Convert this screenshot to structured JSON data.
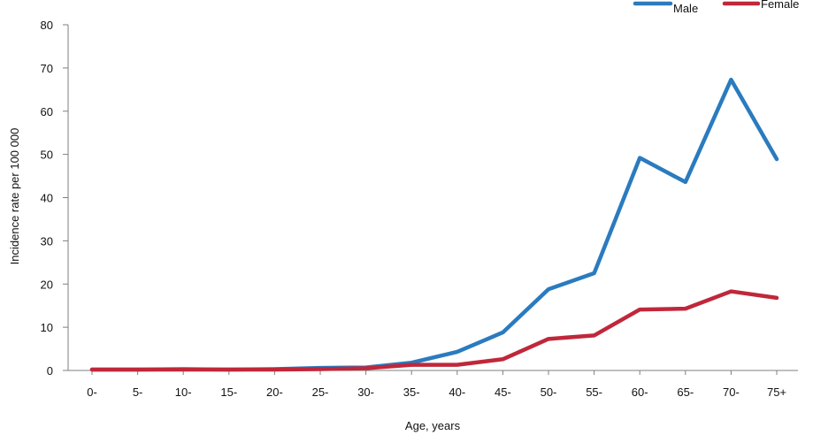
{
  "chart_data": {
    "type": "line",
    "xlabel": "Age, years",
    "ylabel": "Incidence rate per 100 000",
    "categories": [
      "0-",
      "5-",
      "10-",
      "15-",
      "20-",
      "25-",
      "30-",
      "35-",
      "40-",
      "45-",
      "50-",
      "55-",
      "60-",
      "65-",
      "70-",
      "75+"
    ],
    "ylim": [
      0,
      80
    ],
    "yticks": [
      "0",
      "10",
      "20",
      "30",
      "40",
      "50",
      "60",
      "70",
      "80"
    ],
    "grid": false,
    "legend_position": "top-right",
    "series": [
      {
        "name": "Male",
        "color": "#2a7bbf",
        "values": [
          0.2,
          0.2,
          0.3,
          0.2,
          0.3,
          0.6,
          0.7,
          1.8,
          4.3,
          8.8,
          18.8,
          22.5,
          49.2,
          43.6,
          67.3,
          48.9
        ]
      },
      {
        "name": "Female",
        "color": "#c0273a",
        "values": [
          0.2,
          0.2,
          0.2,
          0.2,
          0.2,
          0.3,
          0.5,
          1.3,
          1.3,
          2.6,
          7.3,
          8.1,
          14.1,
          14.3,
          18.3,
          16.8
        ]
      }
    ]
  }
}
